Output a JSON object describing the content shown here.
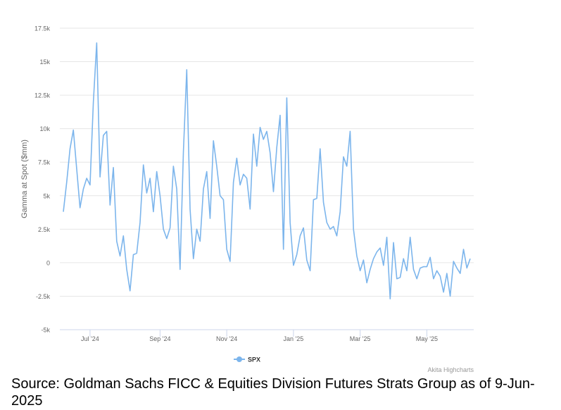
{
  "chart_data": {
    "type": "line",
    "y_axis_label": "Gamma at Spot ($mm)",
    "credits": "Akita Highcharts",
    "source": "Source: Goldman Sachs FICC & Equities Division Futures Strats Group as of 9-Jun-2025",
    "ylim": [
      -5000,
      17500
    ],
    "yticks": [
      {
        "value": -5000,
        "label": "-5k"
      },
      {
        "value": -2500,
        "label": "-2.5k"
      },
      0,
      {
        "value": 2500,
        "label": "2.5k"
      },
      {
        "value": 5000,
        "label": "5k"
      },
      {
        "value": 7500,
        "label": "7.5k"
      },
      {
        "value": 10000,
        "label": "10k"
      },
      {
        "value": 12500,
        "label": "12.5k"
      },
      {
        "value": 15000,
        "label": "15k"
      },
      {
        "value": 17500,
        "label": "17.5k"
      }
    ],
    "grid": true,
    "legend": "bottom",
    "categories": [
      null,
      null,
      null,
      null,
      null,
      null,
      null,
      null,
      "Jul '24",
      null,
      null,
      null,
      null,
      null,
      null,
      null,
      null,
      null,
      null,
      null,
      null,
      null,
      null,
      null,
      null,
      null,
      null,
      null,
      null,
      "Sep '24",
      null,
      null,
      null,
      null,
      null,
      null,
      null,
      null,
      null,
      null,
      null,
      null,
      null,
      null,
      null,
      null,
      null,
      null,
      null,
      "Nov '24",
      null,
      null,
      null,
      null,
      null,
      null,
      null,
      null,
      null,
      null,
      null,
      null,
      null,
      null,
      null,
      null,
      null,
      null,
      null,
      "Jan '25",
      null,
      null,
      null,
      null,
      null,
      null,
      null,
      null,
      null,
      null,
      null,
      null,
      null,
      null,
      null,
      null,
      null,
      null,
      null,
      "Mar '25",
      null,
      null,
      null,
      null,
      null,
      null,
      null,
      null,
      null,
      null,
      null,
      null,
      null,
      null,
      null,
      null,
      null,
      null,
      null,
      "May '25",
      null,
      null,
      null,
      null,
      null,
      null,
      null,
      null,
      null,
      null,
      null,
      null,
      null
    ],
    "series": [
      {
        "name": "SPX",
        "color": "#7cb5ec",
        "values": [
          3800,
          6000,
          8500,
          9900,
          7000,
          4100,
          5500,
          6300,
          5800,
          12000,
          16400,
          6400,
          9500,
          9800,
          4300,
          7100,
          1600,
          500,
          2000,
          -500,
          -2100,
          600,
          700,
          3000,
          7300,
          5200,
          6300,
          3800,
          6800,
          5000,
          2500,
          1800,
          2600,
          7200,
          5500,
          -500,
          8300,
          14400,
          4000,
          300,
          2500,
          1600,
          5500,
          6800,
          3300,
          9100,
          7200,
          5000,
          4700,
          1000,
          100,
          6000,
          7800,
          5800,
          6600,
          6300,
          4000,
          9600,
          7200,
          10100,
          9200,
          9800,
          8200,
          5300,
          8600,
          11000,
          1000,
          12300,
          3000,
          -200,
          600,
          2000,
          2600,
          200,
          -600,
          4700,
          4800,
          8500,
          4500,
          3000,
          2500,
          2700,
          2000,
          3800,
          7900,
          7200,
          9800,
          2500,
          500,
          -600,
          200,
          -1500,
          -500,
          300,
          800,
          1100,
          -200,
          1900,
          -2700,
          1500,
          -1200,
          -1100,
          300,
          -600,
          1900,
          -500,
          -1200,
          -400,
          -300,
          -300,
          400,
          -1200,
          -600,
          -1000,
          -2200,
          -800,
          -2500,
          100,
          -400,
          -800,
          1000,
          -400,
          300
        ]
      }
    ]
  }
}
